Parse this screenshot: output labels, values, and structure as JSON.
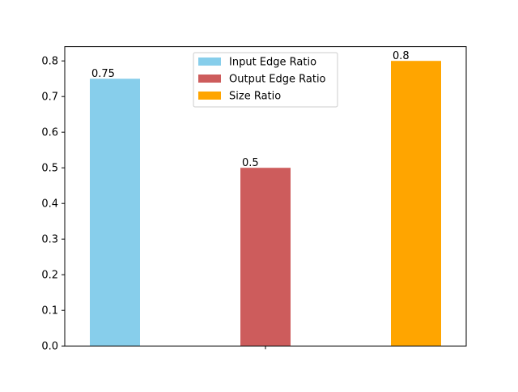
{
  "chart_data": {
    "type": "bar",
    "categories": [
      ""
    ],
    "series": [
      {
        "name": "Input Edge Ratio",
        "values": [
          0.75
        ],
        "color": "#87CEEB",
        "label": "0.75"
      },
      {
        "name": "Output Edge Ratio",
        "values": [
          0.5
        ],
        "color": "#CD5C5C",
        "label": "0.5"
      },
      {
        "name": "Size Ratio",
        "values": [
          0.8
        ],
        "color": "#FFA500",
        "label": "0.8"
      }
    ],
    "ylim": [
      0,
      0.8
    ],
    "yticks": [
      0.0,
      0.1,
      0.2,
      0.3,
      0.4,
      0.5,
      0.6,
      0.7,
      0.8
    ],
    "ytick_labels": [
      "0.0",
      "0.1",
      "0.2",
      "0.3",
      "0.4",
      "0.5",
      "0.6",
      "0.7",
      "0.8"
    ],
    "title": "",
    "xlabel": "",
    "ylabel": "",
    "legend_position": "upper-center",
    "grid": false
  }
}
